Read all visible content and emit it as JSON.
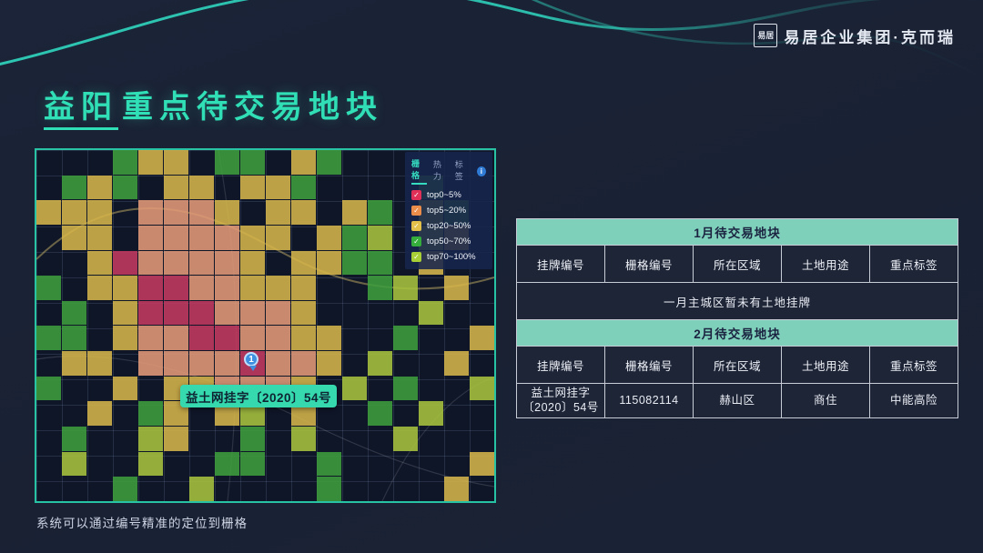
{
  "slide": {
    "logo_seal": "易居",
    "logo_text": "易居企业集团·克而瑞",
    "title": {
      "highlight": "益阳",
      "rest": "重点待交易地块"
    },
    "footnote": "系统可以通过编号精准的定位到栅格",
    "accent_color": "#30dfb6",
    "background_color": "#1a2136"
  },
  "map": {
    "legend": {
      "tabs": [
        {
          "label": "栅格",
          "active": true
        },
        {
          "label": "热力",
          "active": false
        },
        {
          "label": "标签",
          "active": false
        }
      ],
      "info_icon": "i",
      "items": [
        {
          "label": "top0~5%",
          "color": "#e03058",
          "checked": true
        },
        {
          "label": "top5~20%",
          "color": "#ec8c4a",
          "checked": true
        },
        {
          "label": "top20~50%",
          "color": "#e3c04a",
          "checked": true
        },
        {
          "label": "top50~70%",
          "color": "#35ad3c",
          "checked": true
        },
        {
          "label": "top70~100%",
          "color": "#a9cf36",
          "checked": true
        }
      ]
    },
    "marker": {
      "number": "1",
      "label": "益土网挂字〔2020〕54号"
    },
    "grid": {
      "palette": {
        "D": "transparent",
        "G": "#3f9e3d",
        "L": "#a9c43d",
        "Y": "#d6b54a",
        "O": "#e29a77",
        "R": "#c43a60"
      },
      "rows": [
        "DDDGYYDGGDYGDDDDDD",
        "DGYGDYYDYYGDDDDGDD",
        "YYYDOOOYDYYDYGDLGD",
        "DYYDOOOOYYDYGLDLYD",
        "DDYROOOOYDYYGGDYDD",
        "GDYYRROOYYYDDGLDYD",
        "DGDYRRROOOYDDDDLDD",
        "GGDYOORROOYYDDGDDY",
        "DYYDOOOOROOYDLDDYD",
        "GDDYDYYOOOYDLDGDDL",
        "DDYDGYDYLDYDDGDLDD",
        "DGDDLYDDGDLDDDLDDD",
        "DLDDLDDGGDDGDDDDDY",
        "DDDGDDLDDDDGDDDDYD"
      ]
    }
  },
  "tables": [
    {
      "title": "1月待交易地块",
      "columns": [
        "挂牌编号",
        "栅格编号",
        "所在区域",
        "土地用途",
        "重点标签"
      ],
      "message": "一月主城区暂未有土地挂牌",
      "rows": []
    },
    {
      "title": "2月待交易地块",
      "columns": [
        "挂牌编号",
        "栅格编号",
        "所在区域",
        "土地用途",
        "重点标签"
      ],
      "message": null,
      "rows": [
        [
          "益土网挂字〔2020〕54号",
          "115082114",
          "赫山区",
          "商住",
          "中能高险"
        ]
      ]
    }
  ]
}
